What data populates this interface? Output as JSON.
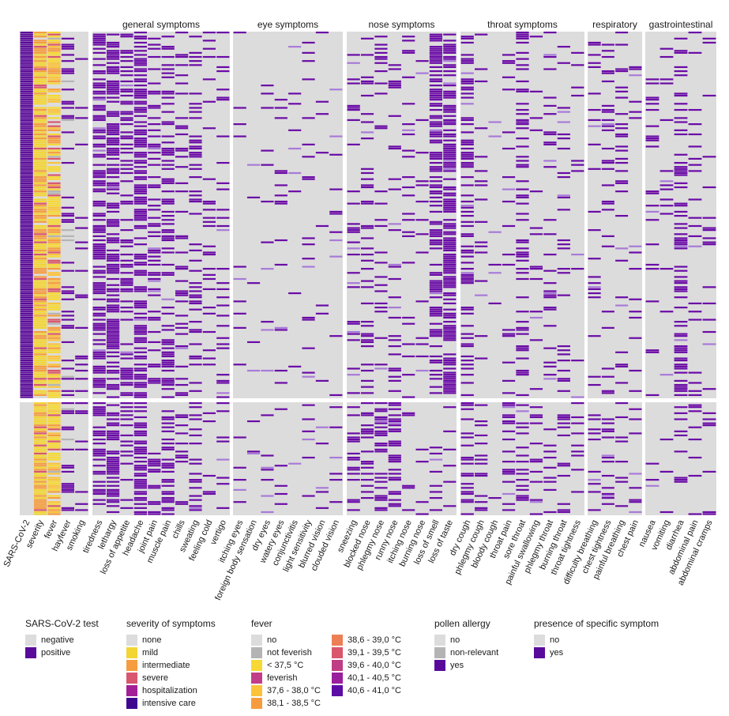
{
  "chart_data": {
    "type": "heatmap",
    "description_rows": "Each row is one participant; upper panel = SARS-CoV-2 positive, lower panel = SARS-CoV-2 negative",
    "panels": [
      "positive",
      "negative"
    ],
    "strips": [
      {
        "title": "",
        "columns": [
          "SARS-CoV-2",
          "severity",
          "fever",
          "hayfever",
          "smoking"
        ]
      },
      {
        "title": "general symptoms",
        "columns": [
          "tiredness",
          "lethargy",
          "loss of appetite",
          "headache",
          "joint pain",
          "muscle pain",
          "chills",
          "sweating",
          "feeling cold",
          "vertigo"
        ]
      },
      {
        "title": "eye symptoms",
        "columns": [
          "itching eyes",
          "foreign body sensation",
          "dry eyes",
          "watery eyes",
          "conjunctivitis",
          "light sensitivity",
          "blurred vision",
          "clouded vision"
        ]
      },
      {
        "title": "nose symptoms",
        "columns": [
          "sneezing",
          "blocked nose",
          "phlegmy nose",
          "runny nose",
          "itching nose",
          "burning nose",
          "loss of smell",
          "loss of taste"
        ]
      },
      {
        "title": "throat symptoms",
        "columns": [
          "dry cough",
          "phlegmy cough",
          "bloody cough",
          "throat pain",
          "sore throat",
          "painful swallowing",
          "phlegmy throat",
          "burning throat",
          "throat tightness"
        ]
      },
      {
        "title": "respiratory",
        "columns": [
          "difficulty breathing",
          "chest tightness",
          "painful breathing",
          "chest pain"
        ]
      },
      {
        "title": "gastrointestinal",
        "columns": [
          "nausea",
          "vomiting",
          "diarrhea",
          "abdominal pain",
          "abdominal cramps"
        ]
      }
    ],
    "column_yes_fraction": {
      "positive": {
        "tiredness": 0.55,
        "lethargy": 0.6,
        "loss of appetite": 0.4,
        "headache": 0.6,
        "joint pain": 0.3,
        "muscle pain": 0.35,
        "chills": 0.2,
        "sweating": 0.25,
        "feeling cold": 0.2,
        "vertigo": 0.15,
        "itching eyes": 0.06,
        "foreign body sensation": 0.04,
        "dry eyes": 0.05,
        "watery eyes": 0.05,
        "conjunctivitis": 0.03,
        "light sensitivity": 0.06,
        "blurred vision": 0.04,
        "clouded vision": 0.04,
        "sneezing": 0.15,
        "blocked nose": 0.2,
        "phlegmy nose": 0.15,
        "runny nose": 0.2,
        "itching nose": 0.08,
        "burning nose": 0.1,
        "loss of smell": 0.55,
        "loss of taste": 0.55,
        "dry cough": 0.35,
        "phlegmy cough": 0.15,
        "bloody cough": 0.02,
        "throat pain": 0.15,
        "sore throat": 0.25,
        "painful swallowing": 0.12,
        "phlegmy throat": 0.12,
        "burning throat": 0.1,
        "throat tightness": 0.08,
        "difficulty breathing": 0.15,
        "chest tightness": 0.15,
        "painful breathing": 0.12,
        "chest pain": 0.12,
        "nausea": 0.12,
        "vomiting": 0.05,
        "diarrhea": 0.3,
        "abdominal pain": 0.12,
        "abdominal cramps": 0.08
      },
      "negative": {
        "tiredness": 0.6,
        "lethargy": 0.55,
        "loss of appetite": 0.35,
        "headache": 0.6,
        "joint pain": 0.3,
        "muscle pain": 0.3,
        "chills": 0.2,
        "sweating": 0.2,
        "feeling cold": 0.15,
        "vertigo": 0.12,
        "itching eyes": 0.08,
        "foreign body sensation": 0.04,
        "dry eyes": 0.05,
        "watery eyes": 0.06,
        "conjunctivitis": 0.03,
        "light sensitivity": 0.05,
        "blurred vision": 0.04,
        "clouded vision": 0.04,
        "sneezing": 0.25,
        "blocked nose": 0.35,
        "phlegmy nose": 0.3,
        "runny nose": 0.35,
        "itching nose": 0.1,
        "burning nose": 0.1,
        "loss of smell": 0.1,
        "loss of taste": 0.1,
        "dry cough": 0.4,
        "phlegmy cough": 0.2,
        "bloody cough": 0.02,
        "throat pain": 0.3,
        "sore throat": 0.35,
        "painful swallowing": 0.2,
        "phlegmy throat": 0.2,
        "burning throat": 0.12,
        "throat tightness": 0.1,
        "difficulty breathing": 0.15,
        "chest tightness": 0.18,
        "painful breathing": 0.12,
        "chest pain": 0.12,
        "nausea": 0.1,
        "vomiting": 0.03,
        "diarrhea": 0.15,
        "abdominal pain": 0.1,
        "abdominal cramps": 0.06
      }
    },
    "colors": {
      "grid_bg": "#dcdcdc",
      "absent": "#dcdcdc",
      "present": "#6a0aa6",
      "light_present": "#a87ad8",
      "non_relevant": "#b4b4b4"
    }
  },
  "legend": [
    {
      "title": "SARS-CoV-2 test",
      "columns": [
        [
          {
            "label": "negative",
            "color": "#dcdcdc"
          },
          {
            "label": "positive",
            "color": "#5a0a9a"
          }
        ]
      ]
    },
    {
      "title": "severity of symptoms",
      "columns": [
        [
          {
            "label": "none",
            "color": "#dcdcdc"
          },
          {
            "label": "mild",
            "color": "#f3d534"
          },
          {
            "label": "intermediate",
            "color": "#f59d40"
          },
          {
            "label": "severe",
            "color": "#d8566e"
          },
          {
            "label": "hospitalization",
            "color": "#a21f96"
          },
          {
            "label": "intensive care",
            "color": "#3f068f"
          }
        ]
      ]
    },
    {
      "title": "fever",
      "columns": [
        [
          {
            "label": "no",
            "color": "#dcdcdc"
          },
          {
            "label": "not feverish",
            "color": "#b4b4b4"
          },
          {
            "label": "< 37,5 °C",
            "color": "#f6d935"
          },
          {
            "label": "feverish",
            "color": "#c23d88"
          },
          {
            "label": "37,6 - 38,0 °C",
            "color": "#fbc33a"
          },
          {
            "label": "38,1 - 38,5 °C",
            "color": "#f79c3e"
          }
        ],
        [
          {
            "label": "38,6 - 39,0 °C",
            "color": "#ed7f55"
          },
          {
            "label": "39,1 - 39,5 °C",
            "color": "#d9566c"
          },
          {
            "label": "39,6 - 40,0 °C",
            "color": "#c03c84"
          },
          {
            "label": "40,1 - 40,5 °C",
            "color": "#9a1f9c"
          },
          {
            "label": "40,6 - 41,0 °C",
            "color": "#5d0ca6"
          }
        ]
      ]
    },
    {
      "title": "pollen allergy",
      "columns": [
        [
          {
            "label": "no",
            "color": "#dcdcdc"
          },
          {
            "label": "non-relevant",
            "color": "#b4b4b4"
          },
          {
            "label": "yes",
            "color": "#5a0a9a"
          }
        ]
      ]
    },
    {
      "title": "presence of specific symptom",
      "columns": [
        [
          {
            "label": "no",
            "color": "#dcdcdc"
          },
          {
            "label": "yes",
            "color": "#5a0a9a"
          }
        ]
      ]
    }
  ]
}
